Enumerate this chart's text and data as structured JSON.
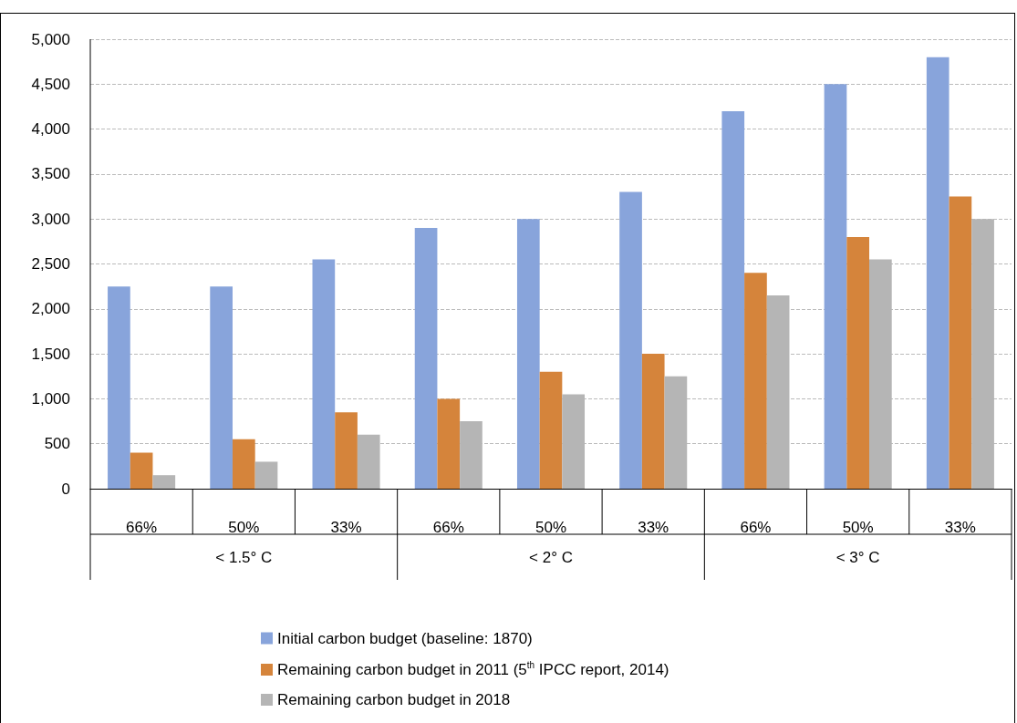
{
  "chart_data": {
    "type": "bar",
    "categories": [
      "66%",
      "50%",
      "33%",
      "66%",
      "50%",
      "33%",
      "66%",
      "50%",
      "33%"
    ],
    "annotations": [
      "< 1.5° C",
      "< 2° C",
      "< 3° C"
    ],
    "series": [
      {
        "name": "Initial carbon budget (baseline: 1870)",
        "color": "#88a4db",
        "values": [
          2250,
          2250,
          2550,
          2900,
          3000,
          3300,
          4200,
          4500,
          4800
        ]
      },
      {
        "name": "Remaining carbon budget in 2011 (5$^{th}$ IPCC report, 2014)",
        "color": "#d5843b",
        "values": [
          400,
          550,
          850,
          1000,
          1300,
          1500,
          2400,
          2800,
          3250
        ]
      },
      {
        "name": "Remaining carbon budget in 2018",
        "color": "#b5b5b5",
        "values": [
          150,
          300,
          600,
          750,
          1050,
          1250,
          2150,
          2550,
          3000
        ]
      }
    ],
    "ylim": [
      0,
      5000
    ],
    "yticks": [
      0,
      500,
      {
        "value": 1000,
        "label": "1,000"
      },
      {
        "value": 1500,
        "label": "1,500"
      },
      {
        "value": 2000,
        "label": "2,000"
      },
      {
        "value": 2500,
        "label": "2,500"
      },
      {
        "value": 3000,
        "label": "3,000"
      },
      {
        "value": 3500,
        "label": "3,500"
      },
      {
        "value": 4000,
        "label": "4,000"
      },
      {
        "value": 4500,
        "label": "4,500"
      },
      {
        "value": 5000,
        "label": "5,000"
      }
    ],
    "grid": "y",
    "legend": "bottom"
  }
}
